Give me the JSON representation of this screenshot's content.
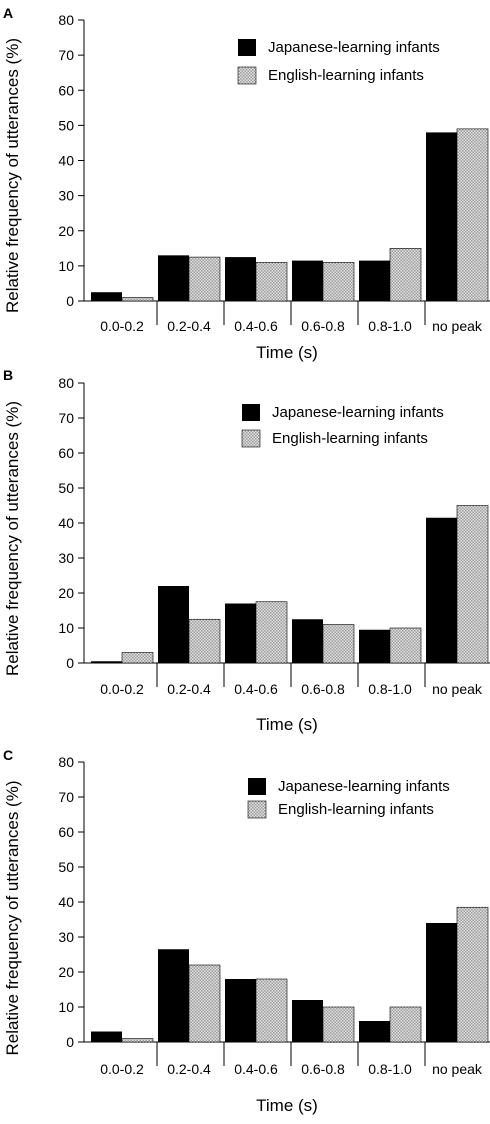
{
  "chart_data": [
    {
      "type": "bar",
      "panel": "A",
      "categories": [
        "0.0-0.2",
        "0.2-0.4",
        "0.4-0.6",
        "0.6-0.8",
        "0.8-1.0",
        "no peak"
      ],
      "series": [
        {
          "name": "Japanese-learning infants",
          "values": [
            2.5,
            13,
            12.5,
            11.5,
            11.5,
            48
          ],
          "color": "#000000",
          "pattern": "solid"
        },
        {
          "name": "English-learning infants",
          "values": [
            1,
            12.5,
            11,
            11,
            15,
            49
          ],
          "color": "#c8c8c8",
          "pattern": "checkered"
        }
      ],
      "xlabel": "Time (s)",
      "ylabel": "Relative frequency of utterances (%)",
      "ylim": [
        0,
        80
      ],
      "yticks": [
        0,
        10,
        20,
        30,
        40,
        50,
        60,
        70,
        80
      ],
      "legend_position": "top-right",
      "grid": false
    },
    {
      "type": "bar",
      "panel": "B",
      "categories": [
        "0.0-0.2",
        "0.2-0.4",
        "0.4-0.6",
        "0.6-0.8",
        "0.8-1.0",
        "no peak"
      ],
      "series": [
        {
          "name": "Japanese-learning infants",
          "values": [
            0.5,
            22,
            17,
            12.5,
            9.5,
            41.5
          ],
          "color": "#000000",
          "pattern": "solid"
        },
        {
          "name": "English-learning infants",
          "values": [
            3,
            12.5,
            17.5,
            11,
            10,
            45
          ],
          "color": "#c8c8c8",
          "pattern": "checkered"
        }
      ],
      "xlabel": "Time (s)",
      "ylabel": "Relative frequency of utterances (%)",
      "ylim": [
        0,
        80
      ],
      "yticks": [
        0,
        10,
        20,
        30,
        40,
        50,
        60,
        70,
        80
      ],
      "legend_position": "top-right",
      "grid": false
    },
    {
      "type": "bar",
      "panel": "C",
      "categories": [
        "0.0-0.2",
        "0.2-0.4",
        "0.4-0.6",
        "0.6-0.8",
        "0.8-1.0",
        "no peak"
      ],
      "series": [
        {
          "name": "Japanese-learning infants",
          "values": [
            3,
            26.5,
            18,
            12,
            6,
            34
          ],
          "color": "#000000",
          "pattern": "solid"
        },
        {
          "name": "English-learning infants",
          "values": [
            1,
            22,
            18,
            10,
            10,
            38.5
          ],
          "color": "#c8c8c8",
          "pattern": "checkered"
        }
      ],
      "xlabel": "Time (s)",
      "ylabel": "Relative frequency of utterances (%)",
      "ylim": [
        0,
        80
      ],
      "yticks": [
        0,
        10,
        20,
        30,
        40,
        50,
        60,
        70,
        80
      ],
      "legend_position": "top-right",
      "grid": false
    }
  ]
}
